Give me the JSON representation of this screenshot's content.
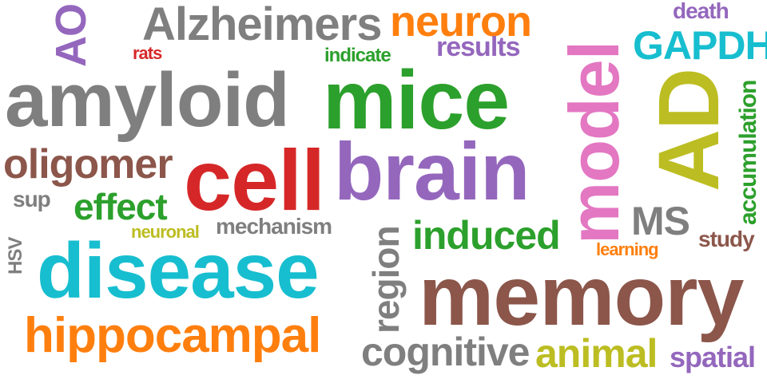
{
  "palette": {
    "gray": "#7f7f7f",
    "green": "#2ca02c",
    "purple": "#9467bd",
    "red": "#d62728",
    "brown": "#8c564b",
    "cyan": "#17becf",
    "orange": "#ff7f0e",
    "pink": "#e377c2",
    "olive": "#bcbd22"
  },
  "words": [
    {
      "text": "amyloid",
      "color": "#7f7f7f"
    },
    {
      "text": "mice",
      "color": "#2ca02c"
    },
    {
      "text": "brain",
      "color": "#9467bd"
    },
    {
      "text": "cell",
      "color": "#d62728"
    },
    {
      "text": "memory",
      "color": "#8c564b"
    },
    {
      "text": "disease",
      "color": "#17becf"
    },
    {
      "text": "model",
      "color": "#e377c2"
    },
    {
      "text": "hippocampal",
      "color": "#ff7f0e"
    },
    {
      "text": "Alzheimers",
      "color": "#7f7f7f"
    },
    {
      "text": "AD",
      "color": "#bcbd22"
    },
    {
      "text": "neuron",
      "color": "#ff7f0e"
    },
    {
      "text": "oligomer",
      "color": "#8c564b"
    },
    {
      "text": "cognitive",
      "color": "#7f7f7f"
    },
    {
      "text": "animal",
      "color": "#bcbd22"
    },
    {
      "text": "induced",
      "color": "#2ca02c"
    },
    {
      "text": "effect",
      "color": "#2ca02c"
    },
    {
      "text": "region",
      "color": "#7f7f7f"
    },
    {
      "text": "GAPDH",
      "color": "#17becf"
    },
    {
      "text": "AO",
      "color": "#9467bd"
    },
    {
      "text": "MS",
      "color": "#7f7f7f"
    },
    {
      "text": "spatial",
      "color": "#9467bd"
    },
    {
      "text": "results",
      "color": "#9467bd"
    },
    {
      "text": "mechanism",
      "color": "#7f7f7f"
    },
    {
      "text": "accumulation",
      "color": "#2ca02c"
    },
    {
      "text": "death",
      "color": "#9467bd"
    },
    {
      "text": "study",
      "color": "#8c564b"
    },
    {
      "text": "indicate",
      "color": "#2ca02c"
    },
    {
      "text": "sup",
      "color": "#7f7f7f"
    },
    {
      "text": "neuronal",
      "color": "#bcbd22"
    },
    {
      "text": "learning",
      "color": "#ff7f0e"
    },
    {
      "text": "rats",
      "color": "#d62728"
    },
    {
      "text": "HSV",
      "color": "#7f7f7f"
    }
  ]
}
